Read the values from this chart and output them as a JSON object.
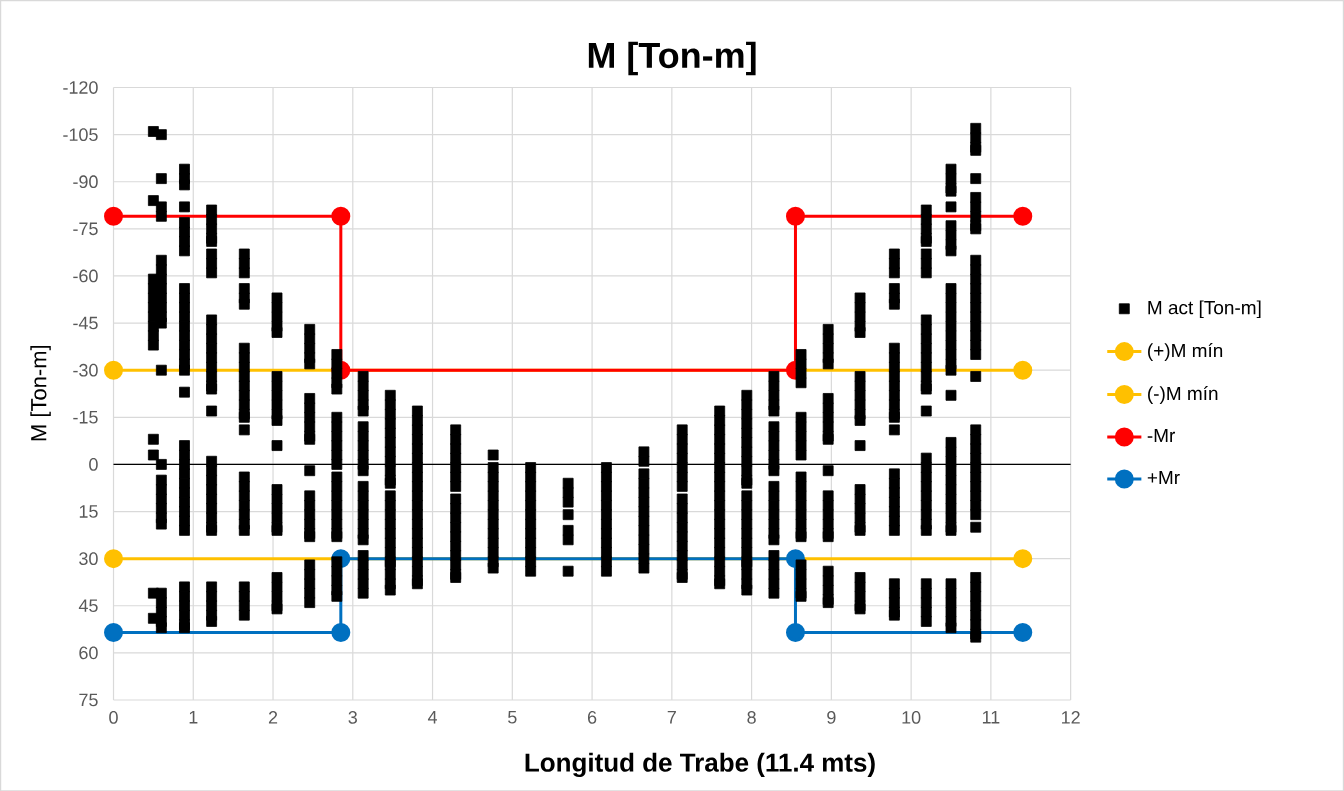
{
  "chart_data": {
    "type": "scatter",
    "title": "M [Ton-m]",
    "xlabel": "Longitud de Trabe (11.4 mts)",
    "ylabel": "M [Ton-m]",
    "xlim": [
      0,
      12
    ],
    "xticks": [
      0,
      1,
      2,
      3,
      4,
      5,
      6,
      7,
      8,
      9,
      10,
      11,
      12
    ],
    "ylim": [
      75,
      -120
    ],
    "yticks": [
      -120,
      -105,
      -90,
      -75,
      -60,
      -45,
      -30,
      -15,
      0,
      15,
      30,
      45,
      60,
      75
    ],
    "grid": true,
    "legend": "right",
    "ref_lines": [
      {
        "axis": "y",
        "value": 0,
        "color": "#000000"
      }
    ],
    "series": [
      {
        "name": "M act [Ton-m]",
        "marker": "square",
        "color": "#000000",
        "x": [
          0.5,
          0.5,
          0.5,
          0.5,
          0.5,
          0.5,
          0.5,
          0.5,
          0.5,
          0.5,
          0.5,
          0.5,
          0.5,
          0.5,
          0.6,
          0.6,
          0.6,
          0.6,
          0.6,
          0.6,
          0.6,
          0.6,
          0.6,
          0.6,
          0.6,
          0.6,
          0.6,
          0.6,
          0.6,
          0.6,
          0.6,
          0.6,
          0.6,
          0.6,
          0.6,
          0.6,
          0.6,
          0.6,
          0.6,
          0.89,
          0.89,
          0.89,
          0.89,
          0.89,
          0.89,
          0.89,
          0.89,
          0.89,
          0.89,
          0.89,
          0.89,
          0.89,
          0.89,
          0.89,
          0.89,
          0.89,
          0.89,
          0.89,
          0.89,
          0.89,
          0.89,
          0.89,
          0.89,
          0.89,
          0.89,
          0.89,
          0.89,
          0.89,
          0.89,
          0.89,
          0.89,
          0.89,
          0.89,
          0.89,
          1.23,
          1.23,
          1.23,
          1.23,
          1.23,
          1.23,
          1.23,
          1.23,
          1.23,
          1.23,
          1.23,
          1.23,
          1.23,
          1.23,
          1.23,
          1.23,
          1.23,
          1.23,
          1.23,
          1.23,
          1.23,
          1.23,
          1.23,
          1.23,
          1.23,
          1.23,
          1.23,
          1.23,
          1.23,
          1.23,
          1.23,
          1.23,
          1.64,
          1.64,
          1.64,
          1.64,
          1.64,
          1.64,
          1.64,
          1.64,
          1.64,
          1.64,
          1.64,
          1.64,
          1.64,
          1.64,
          1.64,
          1.64,
          1.64,
          1.64,
          1.64,
          1.64,
          1.64,
          1.64,
          1.64,
          1.64,
          1.64,
          1.64,
          1.64,
          2.05,
          2.05,
          2.05,
          2.05,
          2.05,
          2.05,
          2.05,
          2.05,
          2.05,
          2.05,
          2.05,
          2.05,
          2.05,
          2.05,
          2.05,
          2.05,
          2.05,
          2.05,
          2.05,
          2.05,
          2.05,
          2.05,
          2.05,
          2.46,
          2.46,
          2.46,
          2.46,
          2.46,
          2.46,
          2.46,
          2.46,
          2.46,
          2.46,
          2.46,
          2.46,
          2.46,
          2.46,
          2.46,
          2.46,
          2.46,
          2.46,
          2.46,
          2.46,
          2.46,
          2.46,
          2.46,
          2.8,
          2.8,
          2.8,
          2.8,
          2.8,
          2.8,
          2.8,
          2.8,
          2.8,
          2.8,
          2.8,
          2.8,
          2.8,
          2.8,
          2.8,
          2.8,
          2.8,
          2.8,
          2.8,
          2.8,
          2.8,
          2.8,
          2.8,
          2.8,
          3.13,
          3.13,
          3.13,
          3.13,
          3.13,
          3.13,
          3.13,
          3.13,
          3.13,
          3.13,
          3.13,
          3.13,
          3.13,
          3.13,
          3.13,
          3.13,
          3.13,
          3.13,
          3.13,
          3.13,
          3.13,
          3.13,
          3.13,
          3.47,
          3.47,
          3.47,
          3.47,
          3.47,
          3.47,
          3.47,
          3.47,
          3.47,
          3.47,
          3.47,
          3.47,
          3.47,
          3.47,
          3.47,
          3.47,
          3.47,
          3.47,
          3.47,
          3.47,
          3.47,
          3.47,
          3.47,
          3.81,
          3.81,
          3.81,
          3.81,
          3.81,
          3.81,
          3.81,
          3.81,
          3.81,
          3.81,
          3.81,
          3.81,
          3.81,
          3.81,
          3.81,
          3.81,
          3.81,
          3.81,
          3.81,
          3.81,
          4.29,
          4.29,
          4.29,
          4.29,
          4.29,
          4.29,
          4.29,
          4.29,
          4.29,
          4.29,
          4.29,
          4.29,
          4.29,
          4.29,
          4.29,
          4.29,
          4.29,
          4.76,
          4.76,
          4.76,
          4.76,
          4.76,
          4.76,
          4.76,
          4.76,
          4.76,
          4.76,
          4.76,
          4.76,
          4.76,
          5.23,
          5.23,
          5.23,
          5.23,
          5.23,
          5.23,
          5.23,
          5.23,
          5.23,
          5.23,
          5.23,
          5.23,
          5.7,
          5.7,
          5.7,
          5.7,
          5.7,
          5.7,
          5.7,
          6.18,
          6.18,
          6.18,
          6.18,
          6.18,
          6.18,
          6.18,
          6.18,
          6.18,
          6.18,
          6.18,
          6.18,
          6.65,
          6.65,
          6.65,
          6.65,
          6.65,
          6.65,
          6.65,
          6.65,
          6.65,
          6.65,
          6.65,
          6.65,
          6.65,
          7.13,
          7.13,
          7.13,
          7.13,
          7.13,
          7.13,
          7.13,
          7.13,
          7.13,
          7.13,
          7.13,
          7.13,
          7.13,
          7.13,
          7.13,
          7.13,
          7.13,
          7.6,
          7.6,
          7.6,
          7.6,
          7.6,
          7.6,
          7.6,
          7.6,
          7.6,
          7.6,
          7.6,
          7.6,
          7.6,
          7.6,
          7.6,
          7.6,
          7.6,
          7.6,
          7.6,
          7.6,
          7.94,
          7.94,
          7.94,
          7.94,
          7.94,
          7.94,
          7.94,
          7.94,
          7.94,
          7.94,
          7.94,
          7.94,
          7.94,
          7.94,
          7.94,
          7.94,
          7.94,
          7.94,
          7.94,
          7.94,
          7.94,
          7.94,
          7.94,
          8.28,
          8.28,
          8.28,
          8.28,
          8.28,
          8.28,
          8.28,
          8.28,
          8.28,
          8.28,
          8.28,
          8.28,
          8.28,
          8.28,
          8.28,
          8.28,
          8.28,
          8.28,
          8.28,
          8.28,
          8.28,
          8.28,
          8.28,
          8.62,
          8.62,
          8.62,
          8.62,
          8.62,
          8.62,
          8.62,
          8.62,
          8.62,
          8.62,
          8.62,
          8.62,
          8.62,
          8.62,
          8.62,
          8.62,
          8.62,
          8.62,
          8.62,
          8.62,
          8.62,
          8.62,
          8.96,
          8.96,
          8.96,
          8.96,
          8.96,
          8.96,
          8.96,
          8.96,
          8.96,
          8.96,
          8.96,
          8.96,
          8.96,
          8.96,
          8.96,
          8.96,
          8.96,
          8.96,
          8.96,
          8.96,
          8.96,
          8.96,
          8.96,
          9.36,
          9.36,
          9.36,
          9.36,
          9.36,
          9.36,
          9.36,
          9.36,
          9.36,
          9.36,
          9.36,
          9.36,
          9.36,
          9.36,
          9.36,
          9.36,
          9.36,
          9.36,
          9.36,
          9.36,
          9.36,
          9.36,
          9.36,
          9.79,
          9.79,
          9.79,
          9.79,
          9.79,
          9.79,
          9.79,
          9.79,
          9.79,
          9.79,
          9.79,
          9.79,
          9.79,
          9.79,
          9.79,
          9.79,
          9.79,
          9.79,
          9.79,
          9.79,
          9.79,
          9.79,
          9.79,
          9.79,
          9.79,
          9.79,
          9.79,
          9.79,
          10.19,
          10.19,
          10.19,
          10.19,
          10.19,
          10.19,
          10.19,
          10.19,
          10.19,
          10.19,
          10.19,
          10.19,
          10.19,
          10.19,
          10.19,
          10.19,
          10.19,
          10.19,
          10.19,
          10.19,
          10.19,
          10.19,
          10.19,
          10.19,
          10.19,
          10.19,
          10.19,
          10.19,
          10.19,
          10.19,
          10.19,
          10.19,
          10.5,
          10.5,
          10.5,
          10.5,
          10.5,
          10.5,
          10.5,
          10.5,
          10.5,
          10.5,
          10.5,
          10.5,
          10.5,
          10.5,
          10.5,
          10.5,
          10.5,
          10.5,
          10.5,
          10.5,
          10.5,
          10.5,
          10.5,
          10.5,
          10.5,
          10.5,
          10.5,
          10.5,
          10.5,
          10.5,
          10.5,
          10.5,
          10.5,
          10.5,
          10.5,
          10.5,
          10.5,
          10.81,
          10.81,
          10.81,
          10.81,
          10.81,
          10.81,
          10.81,
          10.81,
          10.81,
          10.81,
          10.81,
          10.81,
          10.81,
          10.81,
          10.81,
          10.81,
          10.81,
          10.81,
          10.81,
          10.81,
          10.81,
          10.81,
          10.81,
          10.81,
          10.81,
          10.81,
          10.81,
          10.81,
          10.81,
          10.81,
          10.81,
          10.81,
          10.81,
          10.81,
          10.81,
          10.81,
          10.81,
          10.81,
          10.81,
          10.81,
          10.81
        ],
        "values": [
          -106,
          -84,
          -59,
          -56,
          -53,
          -50,
          -47,
          -44,
          -41,
          -38,
          -8,
          -3,
          41,
          49,
          -105,
          -91,
          -82,
          -79,
          -65,
          -62,
          -59,
          -56,
          -53,
          -50,
          -47,
          -45,
          -30,
          0,
          5,
          8,
          11,
          14,
          17,
          19,
          41,
          44,
          47,
          50,
          52,
          -94,
          -91,
          -89,
          -82,
          -77,
          -74,
          -71,
          -68,
          -56,
          -53,
          -50,
          -47,
          -44,
          -41,
          -38,
          -35,
          -32,
          -30,
          -23,
          -6,
          -3,
          0,
          3,
          6,
          9,
          12,
          15,
          18,
          21,
          39,
          42,
          45,
          48,
          51,
          52,
          -81,
          -78,
          -75,
          -72,
          -71,
          -67,
          -64,
          -61,
          -46,
          -43,
          -40,
          -37,
          -34,
          -31,
          -28,
          -25,
          -24,
          -17,
          -1,
          2,
          5,
          8,
          11,
          14,
          17,
          20,
          21,
          39,
          42,
          45,
          48,
          50,
          -67,
          -64,
          -61,
          -56,
          -53,
          -51,
          -37,
          -34,
          -31,
          -28,
          -25,
          -22,
          -19,
          -16,
          -15,
          -11,
          4,
          7,
          10,
          13,
          16,
          19,
          21,
          39,
          42,
          45,
          48,
          -53,
          -50,
          -47,
          -44,
          -42,
          -28,
          -25,
          -22,
          -19,
          -16,
          -14,
          -6,
          8,
          11,
          14,
          17,
          20,
          21,
          36,
          39,
          42,
          45,
          46,
          -43,
          -40,
          -37,
          -34,
          -32,
          -21,
          -18,
          -15,
          -12,
          -9,
          -8,
          2,
          10,
          13,
          16,
          19,
          22,
          23,
          32,
          35,
          38,
          41,
          44,
          -35,
          -32,
          -29,
          -26,
          -24,
          -15,
          -12,
          -9,
          -6,
          -3,
          0,
          4,
          7,
          10,
          13,
          16,
          19,
          22,
          23,
          31,
          34,
          37,
          40,
          42,
          -28,
          -25,
          -22,
          -19,
          -17,
          -12,
          -9,
          -6,
          -3,
          0,
          2,
          7,
          10,
          13,
          16,
          19,
          22,
          24,
          29,
          32,
          35,
          38,
          41,
          -22,
          -19,
          -16,
          -13,
          -10,
          -7,
          -4,
          -1,
          2,
          5,
          6,
          10,
          13,
          16,
          19,
          22,
          25,
          28,
          31,
          32,
          35,
          38,
          40,
          -17,
          -14,
          -11,
          -8,
          -5,
          -2,
          1,
          4,
          7,
          10,
          13,
          16,
          19,
          22,
          25,
          28,
          31,
          34,
          37,
          38,
          -11,
          -8,
          -5,
          -2,
          1,
          4,
          7,
          11,
          14,
          17,
          20,
          23,
          26,
          29,
          32,
          35,
          36,
          -3,
          1,
          4,
          7,
          10,
          13,
          16,
          19,
          22,
          25,
          28,
          31,
          33,
          1,
          4,
          7,
          10,
          13,
          16,
          19,
          22,
          25,
          28,
          31,
          34,
          6,
          9,
          12,
          16,
          21,
          24,
          34,
          1,
          4,
          7,
          10,
          13,
          16,
          19,
          22,
          25,
          28,
          31,
          34,
          -4,
          -1,
          3,
          6,
          9,
          12,
          15,
          18,
          21,
          24,
          27,
          30,
          33,
          -11,
          -8,
          -5,
          -2,
          1,
          4,
          7,
          11,
          14,
          17,
          20,
          23,
          26,
          29,
          32,
          35,
          36,
          -17,
          -14,
          -11,
          -8,
          -5,
          -2,
          1,
          4,
          7,
          10,
          13,
          16,
          19,
          22,
          25,
          28,
          31,
          34,
          37,
          38,
          -22,
          -19,
          -16,
          -13,
          -10,
          -7,
          -4,
          -1,
          2,
          5,
          6,
          10,
          13,
          16,
          19,
          22,
          25,
          28,
          31,
          32,
          35,
          38,
          40,
          -28,
          -25,
          -22,
          -19,
          -17,
          -12,
          -9,
          -6,
          -3,
          0,
          2,
          7,
          10,
          13,
          16,
          19,
          22,
          24,
          29,
          32,
          35,
          38,
          41,
          -35,
          -32,
          -29,
          -26,
          -15,
          -12,
          -9,
          -6,
          -3,
          4,
          7,
          10,
          13,
          16,
          19,
          22,
          23,
          32,
          35,
          38,
          41,
          42,
          -43,
          -40,
          -37,
          -34,
          -32,
          -21,
          -18,
          -15,
          -12,
          -9,
          -8,
          2,
          10,
          13,
          16,
          19,
          22,
          23,
          34,
          37,
          40,
          43,
          44,
          -53,
          -50,
          -47,
          -44,
          -42,
          -28,
          -25,
          -22,
          -19,
          -16,
          -14,
          -6,
          8,
          11,
          14,
          17,
          20,
          21,
          36,
          39,
          42,
          45,
          46,
          -67,
          -64,
          -61,
          -56,
          -53,
          -51,
          -37,
          -34,
          -31,
          -28,
          -25,
          -22,
          -19,
          -16,
          -15,
          -11,
          3,
          6,
          9,
          12,
          15,
          18,
          21,
          38,
          41,
          44,
          47,
          48,
          -81,
          -78,
          -75,
          -72,
          -71,
          -67,
          -64,
          -61,
          -46,
          -43,
          -40,
          -37,
          -34,
          -31,
          -28,
          -25,
          -24,
          -17,
          -2,
          1,
          4,
          7,
          10,
          13,
          16,
          19,
          21,
          38,
          41,
          44,
          47,
          50,
          -94,
          -91,
          -88,
          -87,
          -82,
          -76,
          -73,
          -70,
          -68,
          -56,
          -53,
          -50,
          -47,
          -44,
          -41,
          -38,
          -35,
          -32,
          -30,
          -22,
          -7,
          -4,
          -1,
          2,
          5,
          8,
          11,
          14,
          17,
          20,
          21,
          38,
          41,
          44,
          47,
          50,
          52,
          -107,
          -104,
          -101,
          -100,
          -91,
          -85,
          -82,
          -79,
          -76,
          -75,
          -65,
          -62,
          -59,
          -56,
          -53,
          -50,
          -47,
          -44,
          -41,
          -38,
          -35,
          -28,
          -11,
          -8,
          -5,
          -2,
          1,
          4,
          7,
          10,
          13,
          16,
          20,
          36,
          39,
          42,
          45,
          48,
          51,
          54,
          55
        ]
      },
      {
        "name": "(+)M mín",
        "type": "line",
        "marker": "circle",
        "color": "#ffc000",
        "x": [
          0,
          11.4
        ],
        "values": [
          -30,
          -30
        ]
      },
      {
        "name": "(-)M mín",
        "type": "line",
        "marker": "circle",
        "color": "#ffc000",
        "x": [
          0,
          11.4
        ],
        "values": [
          30,
          30
        ]
      },
      {
        "name": "-Mr",
        "type": "line",
        "marker": "circle",
        "color": "#ff0000",
        "x": [
          0,
          2.85,
          2.85,
          8.55,
          8.55,
          11.4
        ],
        "values": [
          -79,
          -79,
          -30,
          -30,
          -79,
          -79
        ]
      },
      {
        "name": "+Mr",
        "type": "line",
        "marker": "circle",
        "color": "#0070c0",
        "x": [
          0,
          2.85,
          2.85,
          8.55,
          8.55,
          11.4
        ],
        "values": [
          53.5,
          53.5,
          30,
          30,
          53.5,
          53.5
        ]
      }
    ]
  }
}
